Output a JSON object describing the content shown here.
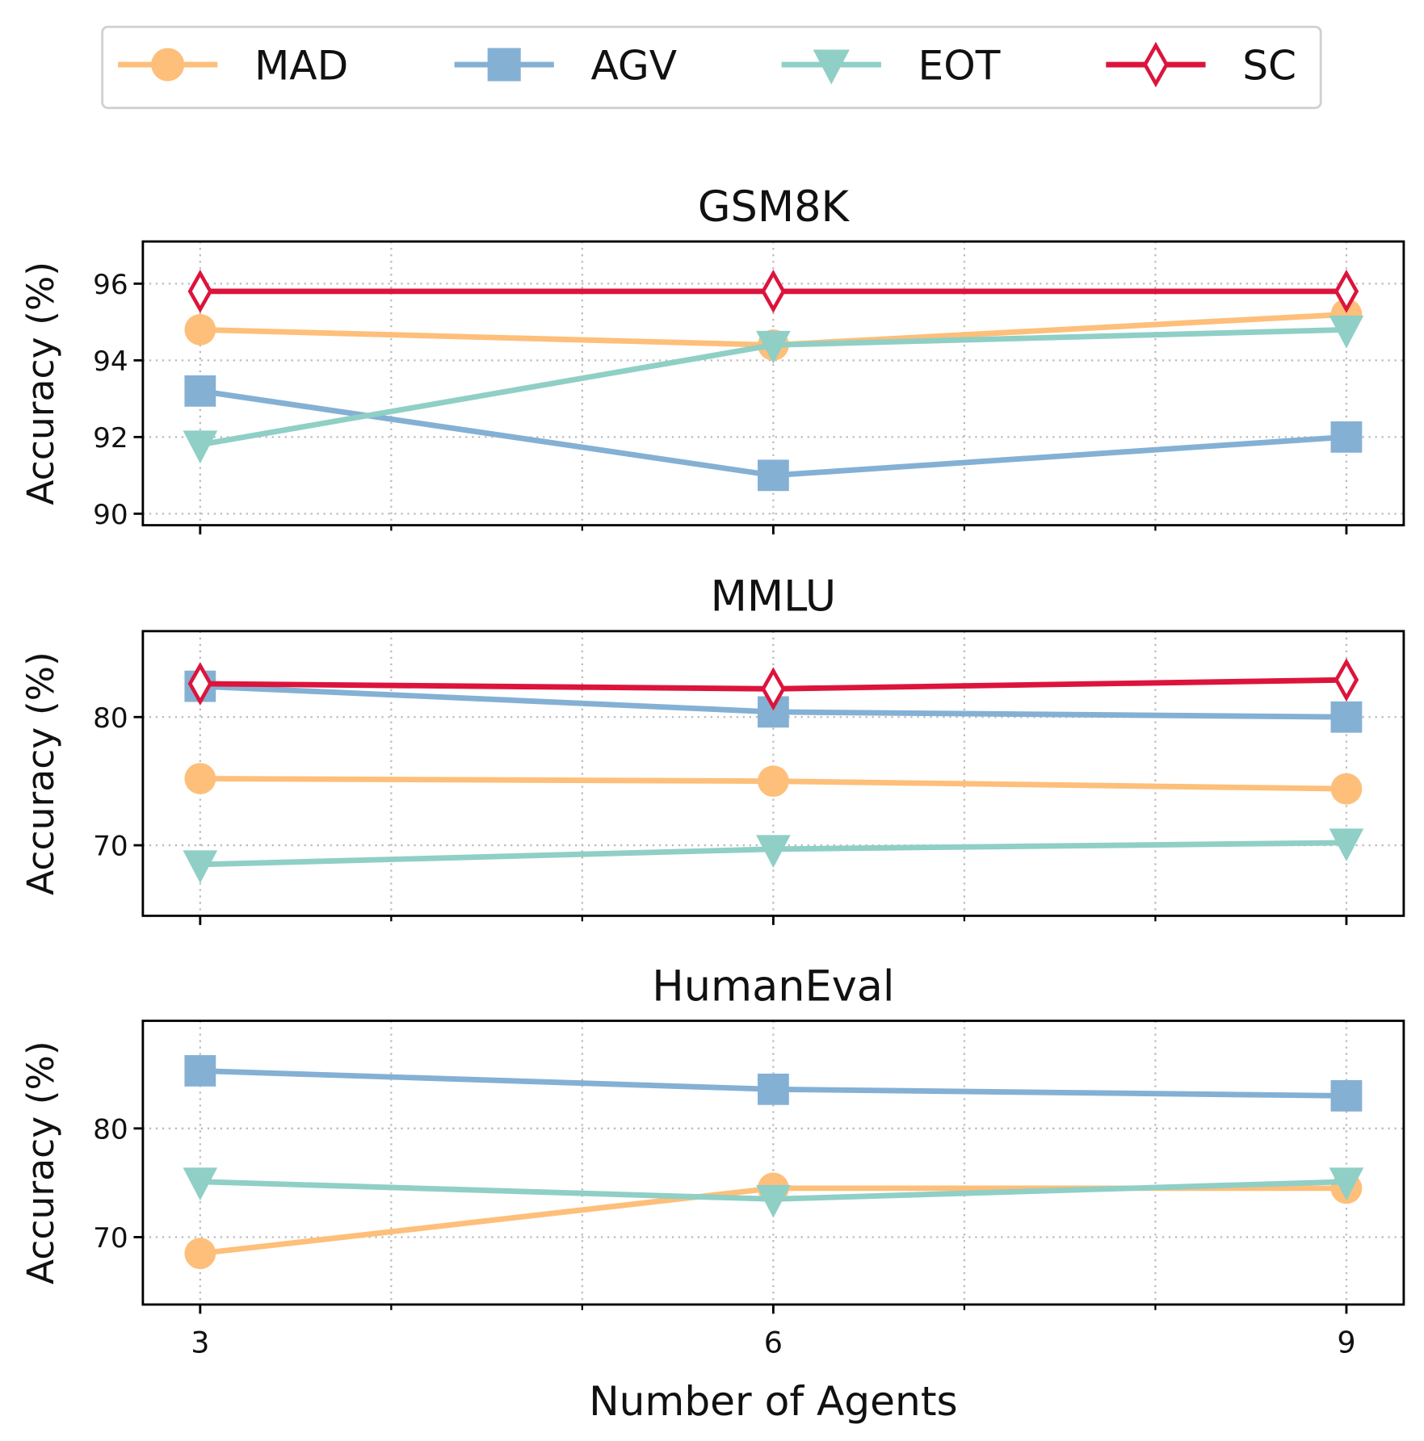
{
  "chart_data": [
    {
      "type": "line",
      "title": "GSM8K",
      "xlabel": "",
      "ylabel": "Accuracy (%)",
      "x": [
        3,
        6,
        9
      ],
      "xlim": [
        2.7,
        9.3
      ],
      "ylim": [
        89.7,
        97.1
      ],
      "yticks": [
        90,
        92,
        94,
        96
      ],
      "grid": true,
      "series": [
        {
          "name": "MAD",
          "values": [
            94.8,
            94.4,
            95.2
          ]
        },
        {
          "name": "AGV",
          "values": [
            93.2,
            91.0,
            92.0
          ]
        },
        {
          "name": "EOT",
          "values": [
            91.8,
            94.4,
            94.8
          ]
        },
        {
          "name": "SC",
          "values": [
            95.8,
            95.8,
            95.8
          ]
        }
      ]
    },
    {
      "type": "line",
      "title": "MMLU",
      "xlabel": "",
      "ylabel": "Accuracy (%)",
      "x": [
        3,
        6,
        9
      ],
      "xlim": [
        2.7,
        9.3
      ],
      "ylim": [
        64.5,
        86.7
      ],
      "yticks": [
        70,
        80
      ],
      "grid": true,
      "series": [
        {
          "name": "MAD",
          "values": [
            75.2,
            75.0,
            74.4
          ]
        },
        {
          "name": "AGV",
          "values": [
            82.4,
            80.4,
            80.0
          ]
        },
        {
          "name": "EOT",
          "values": [
            68.5,
            69.7,
            70.2
          ]
        },
        {
          "name": "SC",
          "values": [
            82.6,
            82.2,
            82.9
          ]
        }
      ]
    },
    {
      "type": "line",
      "title": "HumanEval",
      "xlabel": "Number of Agents",
      "ylabel": "Accuracy (%)",
      "x": [
        3,
        6,
        9
      ],
      "xlim": [
        2.7,
        9.3
      ],
      "ylim": [
        63.8,
        89.9
      ],
      "yticks": [
        70,
        80
      ],
      "xticks": [
        3,
        6,
        9
      ],
      "grid": true,
      "series": [
        {
          "name": "MAD",
          "values": [
            68.5,
            74.5,
            74.5
          ]
        },
        {
          "name": "AGV",
          "values": [
            85.3,
            83.6,
            83.0
          ]
        },
        {
          "name": "EOT",
          "values": [
            75.1,
            73.5,
            75.1
          ]
        }
      ]
    }
  ],
  "legend": {
    "placement": "top-center",
    "entries": [
      {
        "name": "MAD",
        "color": "#FDBF7A",
        "marker": "circle"
      },
      {
        "name": "AGV",
        "color": "#84B0D4",
        "marker": "square"
      },
      {
        "name": "EOT",
        "color": "#8FCFC6",
        "marker": "triangle-down"
      },
      {
        "name": "SC",
        "color": "#DC143C",
        "marker": "diamond-open"
      }
    ]
  }
}
